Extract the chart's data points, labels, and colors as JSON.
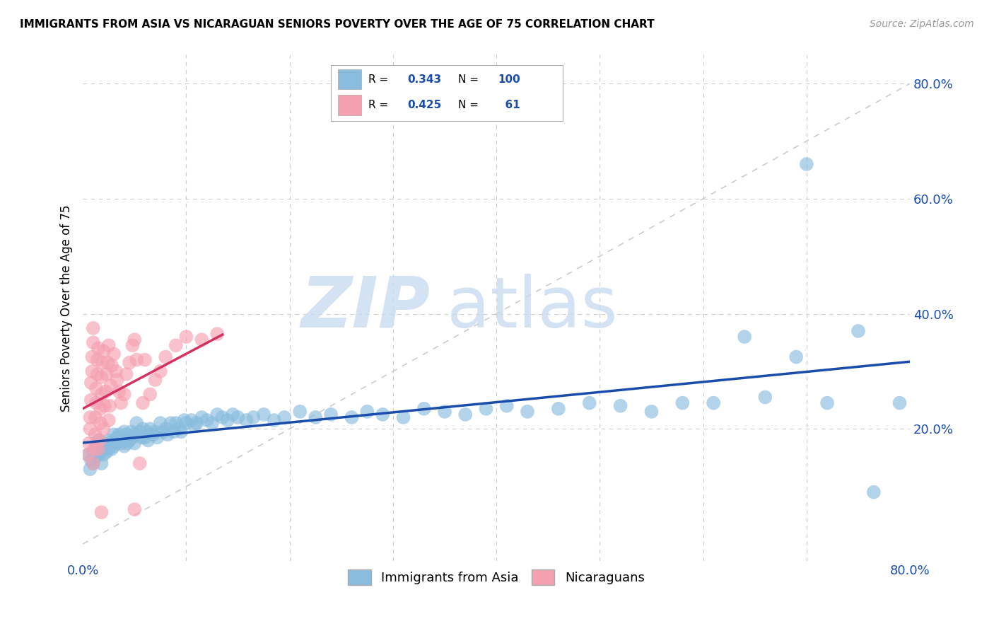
{
  "title": "IMMIGRANTS FROM ASIA VS NICARAGUAN SENIORS POVERTY OVER THE AGE OF 75 CORRELATION CHART",
  "source": "Source: ZipAtlas.com",
  "ylabel": "Seniors Poverty Over the Age of 75",
  "xlim": [
    0.0,
    0.8
  ],
  "ylim": [
    -0.03,
    0.85
  ],
  "blue_color": "#89BCDE",
  "pink_color": "#F5A0B0",
  "blue_line_color": "#1A4DAB",
  "pink_line_color": "#D43060",
  "watermark_zip": "ZIP",
  "watermark_atlas": "atlas",
  "watermark_color_zip": "#C5DCF0",
  "watermark_color_atlas": "#C5DCF0",
  "legend_label_blue": "Immigrants from Asia",
  "legend_label_pink": "Nicaraguans",
  "blue_R": "0.343",
  "blue_N": "100",
  "pink_R": "0.425",
  "pink_N": "61",
  "blue_scatter": [
    [
      0.005,
      0.155
    ],
    [
      0.007,
      0.13
    ],
    [
      0.008,
      0.145
    ],
    [
      0.01,
      0.16
    ],
    [
      0.01,
      0.14
    ],
    [
      0.012,
      0.15
    ],
    [
      0.013,
      0.17
    ],
    [
      0.015,
      0.155
    ],
    [
      0.015,
      0.18
    ],
    [
      0.017,
      0.16
    ],
    [
      0.018,
      0.14
    ],
    [
      0.02,
      0.175
    ],
    [
      0.02,
      0.155
    ],
    [
      0.022,
      0.17
    ],
    [
      0.023,
      0.16
    ],
    [
      0.025,
      0.165
    ],
    [
      0.025,
      0.18
    ],
    [
      0.027,
      0.175
    ],
    [
      0.028,
      0.165
    ],
    [
      0.03,
      0.19
    ],
    [
      0.03,
      0.17
    ],
    [
      0.032,
      0.175
    ],
    [
      0.033,
      0.185
    ],
    [
      0.035,
      0.19
    ],
    [
      0.037,
      0.175
    ],
    [
      0.038,
      0.18
    ],
    [
      0.04,
      0.195
    ],
    [
      0.04,
      0.17
    ],
    [
      0.042,
      0.19
    ],
    [
      0.043,
      0.175
    ],
    [
      0.045,
      0.18
    ],
    [
      0.047,
      0.195
    ],
    [
      0.048,
      0.185
    ],
    [
      0.05,
      0.19
    ],
    [
      0.05,
      0.175
    ],
    [
      0.052,
      0.21
    ],
    [
      0.055,
      0.195
    ],
    [
      0.057,
      0.185
    ],
    [
      0.058,
      0.2
    ],
    [
      0.06,
      0.185
    ],
    [
      0.062,
      0.195
    ],
    [
      0.063,
      0.18
    ],
    [
      0.065,
      0.2
    ],
    [
      0.068,
      0.19
    ],
    [
      0.07,
      0.195
    ],
    [
      0.072,
      0.185
    ],
    [
      0.075,
      0.21
    ],
    [
      0.078,
      0.195
    ],
    [
      0.08,
      0.2
    ],
    [
      0.082,
      0.19
    ],
    [
      0.085,
      0.21
    ],
    [
      0.088,
      0.195
    ],
    [
      0.09,
      0.21
    ],
    [
      0.093,
      0.2
    ],
    [
      0.095,
      0.195
    ],
    [
      0.098,
      0.215
    ],
    [
      0.1,
      0.21
    ],
    [
      0.105,
      0.215
    ],
    [
      0.108,
      0.205
    ],
    [
      0.11,
      0.21
    ],
    [
      0.115,
      0.22
    ],
    [
      0.12,
      0.215
    ],
    [
      0.125,
      0.21
    ],
    [
      0.13,
      0.225
    ],
    [
      0.135,
      0.22
    ],
    [
      0.14,
      0.215
    ],
    [
      0.145,
      0.225
    ],
    [
      0.15,
      0.22
    ],
    [
      0.158,
      0.215
    ],
    [
      0.165,
      0.22
    ],
    [
      0.175,
      0.225
    ],
    [
      0.185,
      0.215
    ],
    [
      0.195,
      0.22
    ],
    [
      0.21,
      0.23
    ],
    [
      0.225,
      0.22
    ],
    [
      0.24,
      0.225
    ],
    [
      0.26,
      0.22
    ],
    [
      0.275,
      0.23
    ],
    [
      0.29,
      0.225
    ],
    [
      0.31,
      0.22
    ],
    [
      0.33,
      0.235
    ],
    [
      0.35,
      0.23
    ],
    [
      0.37,
      0.225
    ],
    [
      0.39,
      0.235
    ],
    [
      0.41,
      0.24
    ],
    [
      0.43,
      0.23
    ],
    [
      0.46,
      0.235
    ],
    [
      0.49,
      0.245
    ],
    [
      0.52,
      0.24
    ],
    [
      0.55,
      0.23
    ],
    [
      0.58,
      0.245
    ],
    [
      0.61,
      0.245
    ],
    [
      0.64,
      0.36
    ],
    [
      0.66,
      0.255
    ],
    [
      0.69,
      0.325
    ],
    [
      0.7,
      0.66
    ],
    [
      0.72,
      0.245
    ],
    [
      0.75,
      0.37
    ],
    [
      0.765,
      0.09
    ],
    [
      0.79,
      0.245
    ]
  ],
  "pink_scatter": [
    [
      0.005,
      0.155
    ],
    [
      0.006,
      0.175
    ],
    [
      0.007,
      0.2
    ],
    [
      0.007,
      0.22
    ],
    [
      0.008,
      0.25
    ],
    [
      0.008,
      0.28
    ],
    [
      0.009,
      0.3
    ],
    [
      0.009,
      0.325
    ],
    [
      0.01,
      0.35
    ],
    [
      0.01,
      0.375
    ],
    [
      0.01,
      0.14
    ],
    [
      0.011,
      0.165
    ],
    [
      0.012,
      0.19
    ],
    [
      0.012,
      0.22
    ],
    [
      0.013,
      0.245
    ],
    [
      0.013,
      0.27
    ],
    [
      0.014,
      0.295
    ],
    [
      0.014,
      0.32
    ],
    [
      0.015,
      0.34
    ],
    [
      0.015,
      0.165
    ],
    [
      0.016,
      0.18
    ],
    [
      0.017,
      0.21
    ],
    [
      0.017,
      0.235
    ],
    [
      0.018,
      0.26
    ],
    [
      0.018,
      0.29
    ],
    [
      0.019,
      0.315
    ],
    [
      0.02,
      0.335
    ],
    [
      0.02,
      0.2
    ],
    [
      0.021,
      0.24
    ],
    [
      0.022,
      0.265
    ],
    [
      0.023,
      0.295
    ],
    [
      0.024,
      0.315
    ],
    [
      0.025,
      0.345
    ],
    [
      0.025,
      0.215
    ],
    [
      0.026,
      0.24
    ],
    [
      0.027,
      0.275
    ],
    [
      0.028,
      0.31
    ],
    [
      0.03,
      0.33
    ],
    [
      0.032,
      0.3
    ],
    [
      0.033,
      0.285
    ],
    [
      0.035,
      0.265
    ],
    [
      0.037,
      0.245
    ],
    [
      0.04,
      0.26
    ],
    [
      0.042,
      0.295
    ],
    [
      0.045,
      0.315
    ],
    [
      0.048,
      0.345
    ],
    [
      0.05,
      0.355
    ],
    [
      0.052,
      0.32
    ],
    [
      0.055,
      0.14
    ],
    [
      0.058,
      0.245
    ],
    [
      0.06,
      0.32
    ],
    [
      0.065,
      0.26
    ],
    [
      0.07,
      0.285
    ],
    [
      0.075,
      0.3
    ],
    [
      0.08,
      0.325
    ],
    [
      0.09,
      0.345
    ],
    [
      0.1,
      0.36
    ],
    [
      0.115,
      0.355
    ],
    [
      0.13,
      0.365
    ],
    [
      0.05,
      0.06
    ],
    [
      0.018,
      0.055
    ]
  ]
}
